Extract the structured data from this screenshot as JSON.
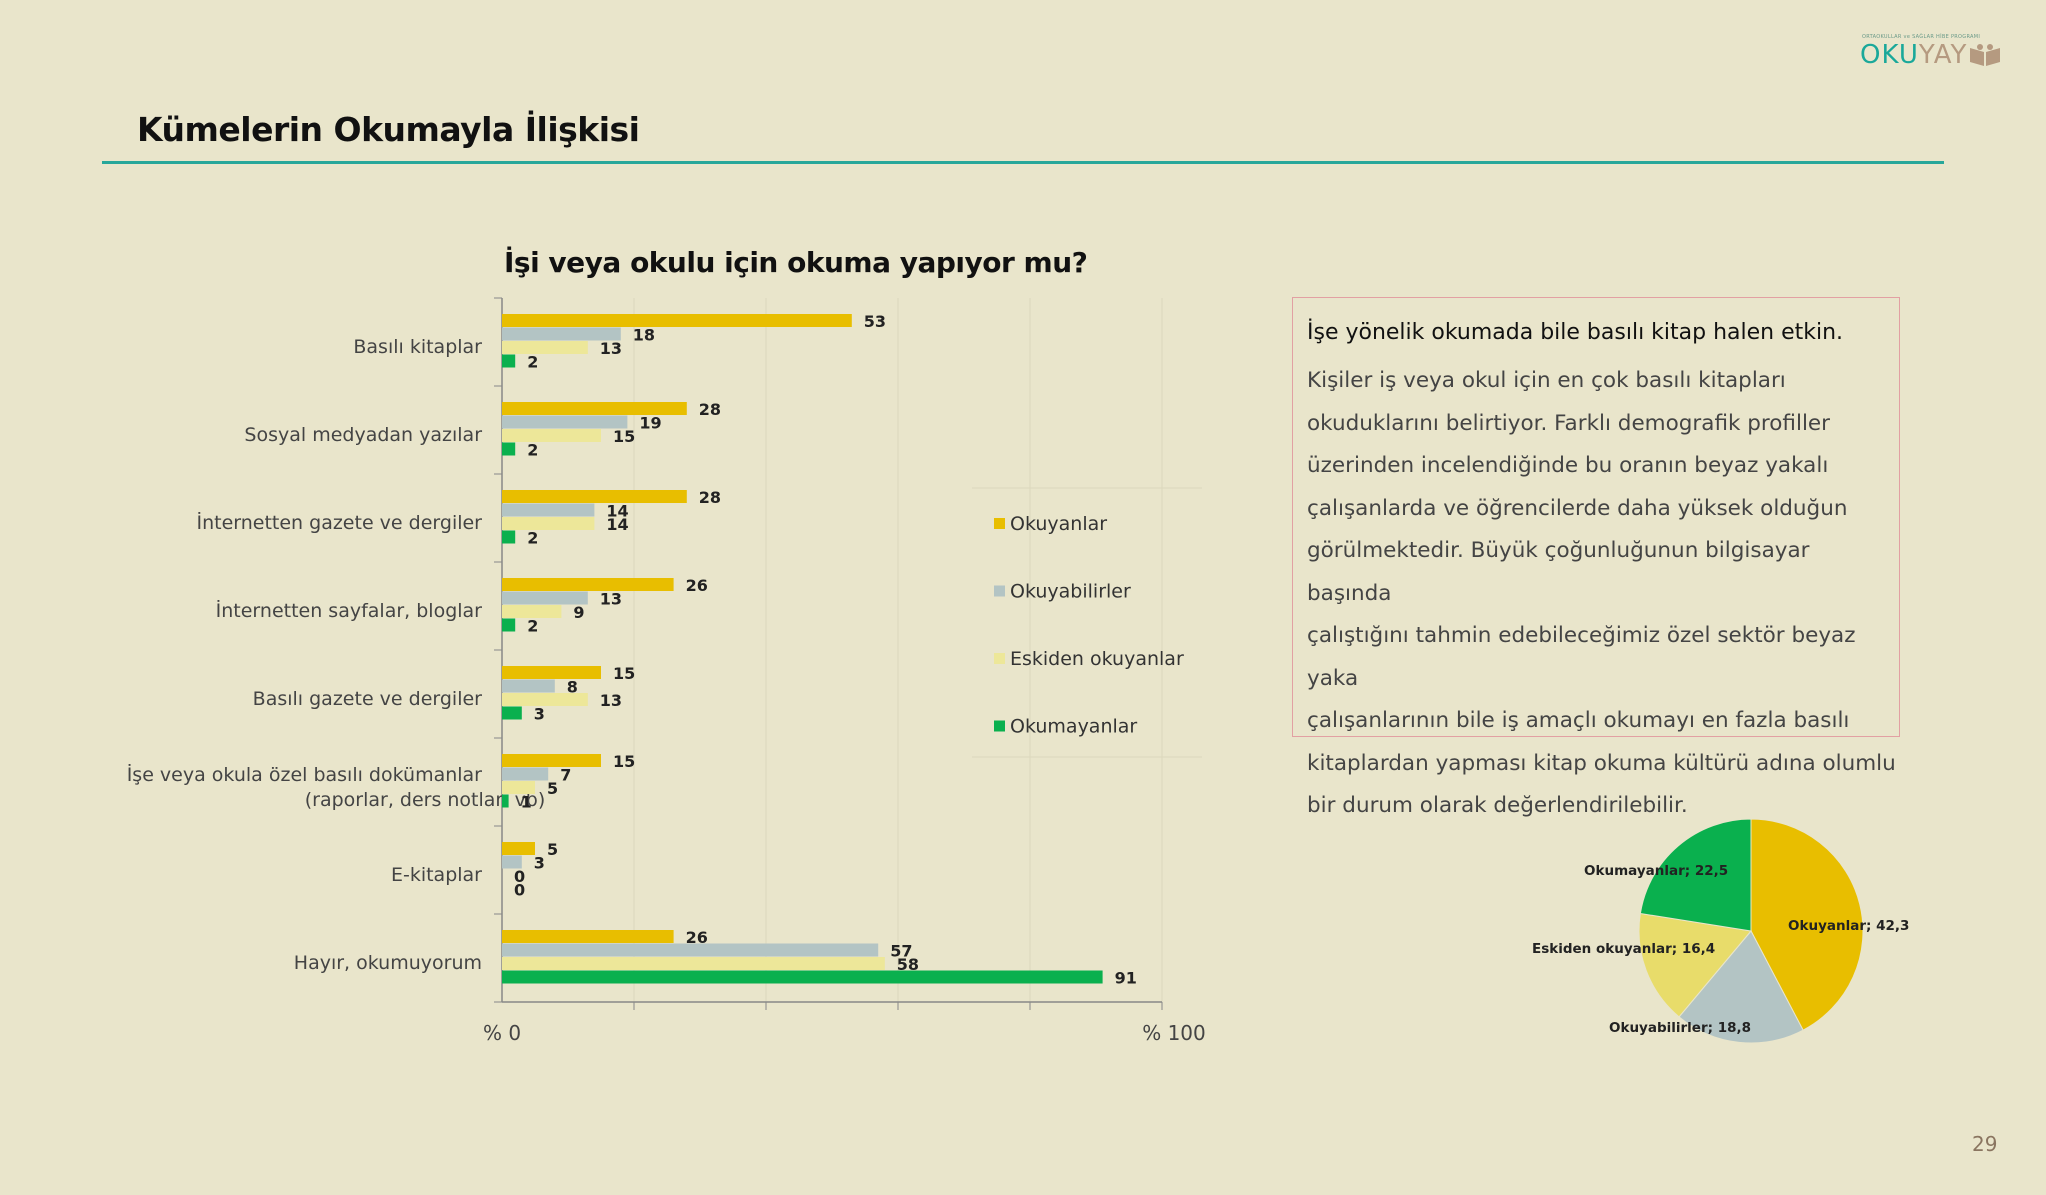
{
  "logo": {
    "small_text": "ORTAOKULLAR ve SAĞLAR HİBE PROGRAMI",
    "part1": "OKU",
    "part2": "YAY"
  },
  "page_title": "Kümelerin Okumayla İlişkisi",
  "page_number": "29",
  "text_box": {
    "lead": "İşe yönelik okumada bile basılı kitap halen etkin.",
    "lines": [
      "Kişiler iş veya okul için en çok basılı kitapları",
      "okuduklarını belirtiyor. Farklı demografik profiller",
      "üzerinden incelendiğinde bu oranın beyaz yakalı",
      "çalışanlarda ve öğrencilerde daha yüksek olduğun",
      "görülmektedir. Büyük çoğunluğunun bilgisayar başında",
      "çalıştığını tahmin edebileceğimiz özel sektör beyaz yaka",
      "çalışanlarının bile iş amaçlı okumayı en fazla basılı",
      "kitaplardan yapması kitap okuma kültürü adına olumlu",
      "bir durum olarak değerlendirilebilir."
    ]
  },
  "colors": {
    "okuyanlar": "#e8be00",
    "okuyabilirler": "#b3c4c4",
    "eskiden": "#ede799",
    "okumayanlar": "#0ab04e",
    "background": "#e9e5cb",
    "accent_rule": "#27a79a"
  },
  "chart_data": [
    {
      "type": "bar",
      "orientation": "horizontal",
      "title": "İşi veya okulu için okuma yapıyor mu?",
      "categories": [
        "Basılı kitaplar",
        "Sosyal medyadan yazılar",
        "İnternetten gazete ve dergiler",
        "İnternetten sayfalar, bloglar",
        "Basılı gazete ve dergiler",
        "İşe veya okula özel basılı dokümanlar (raporlar, ders notları vb)",
        "E-kitaplar",
        "Hayır, okumuyorum"
      ],
      "category_lines": [
        [
          "Basılı kitaplar"
        ],
        [
          "Sosyal medyadan yazılar"
        ],
        [
          "İnternetten gazete ve dergiler"
        ],
        [
          "İnternetten sayfalar, bloglar"
        ],
        [
          "Basılı gazete ve dergiler"
        ],
        [
          "İşe veya okula özel basılı dokümanlar",
          "(raporlar, ders notları vb)"
        ],
        [
          "E-kitaplar"
        ],
        [
          "Hayır, okumuyorum"
        ]
      ],
      "series": [
        {
          "name": "Okuyanlar",
          "color": "#e8be00",
          "values": [
            53,
            28,
            28,
            26,
            15,
            15,
            5,
            26
          ]
        },
        {
          "name": "Okuyabilirler",
          "color": "#b3c4c4",
          "values": [
            18,
            19,
            14,
            13,
            8,
            7,
            3,
            57
          ]
        },
        {
          "name": "Eskiden okuyanlar",
          "color": "#ede799",
          "values": [
            13,
            15,
            14,
            9,
            13,
            5,
            0,
            58
          ]
        },
        {
          "name": "Okumayanlar",
          "color": "#0ab04e",
          "values": [
            2,
            2,
            2,
            2,
            3,
            1,
            0,
            91
          ]
        }
      ],
      "xlim": [
        0,
        100
      ],
      "x_tick_labels": [
        "% 0",
        "% 100"
      ],
      "grid": true,
      "legend_position": "right",
      "data_labels": true
    },
    {
      "type": "pie",
      "slices": [
        {
          "name": "Okuyanlar",
          "value": 42.3,
          "label": "Okuyanlar; 42,3",
          "color": "#e8be00"
        },
        {
          "name": "Okuyabilirler",
          "value": 18.8,
          "label": "Okuyabilirler; 18,8",
          "color": "#b3c4c4"
        },
        {
          "name": "Eskiden okuyanlar",
          "value": 16.4,
          "label": "Eskiden okuyanlar; 16,4",
          "color": "#e8dc6a"
        },
        {
          "name": "Okumayanlar",
          "value": 22.5,
          "label": "Okumayanlar; 22,5",
          "color": "#0ab04e"
        }
      ],
      "start_angle": "12 o'clock",
      "direction": "clockwise"
    }
  ]
}
